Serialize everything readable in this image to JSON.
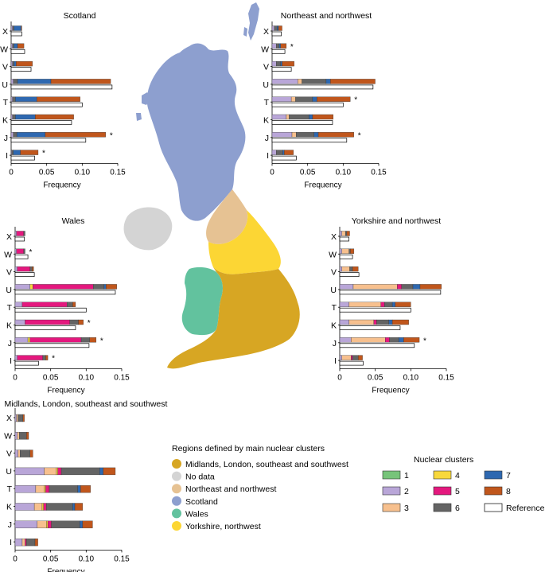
{
  "chart_data": {
    "type": "bar",
    "orientation": "horizontal-stacked",
    "categories": [
      "X",
      "W",
      "V",
      "U",
      "T",
      "K",
      "J",
      "I"
    ],
    "xlabel": "Frequency",
    "xticks": [
      "0",
      "0.05",
      "0.10",
      "0.15"
    ],
    "xlim": [
      0,
      0.15
    ],
    "cluster_colors": {
      "1": "#77c47a",
      "2": "#b9a6d8",
      "3": "#f7c08e",
      "4": "#f8d83c",
      "5": "#e4187e",
      "6": "#646464",
      "7": "#2e68b0",
      "8": "#c0561c"
    },
    "reference_color": "#ffffff",
    "panels": [
      {
        "title": "Scotland",
        "stacks": {
          "X": [
            [
              2,
              0.002
            ],
            [
              6,
              0.002
            ],
            [
              7,
              0.01
            ],
            [
              8,
              0.001
            ]
          ],
          "W": [
            [
              2,
              0.002
            ],
            [
              6,
              0.002
            ],
            [
              7,
              0.005
            ],
            [
              8,
              0.009
            ]
          ],
          "V": [
            [
              2,
              0.002
            ],
            [
              6,
              0.002
            ],
            [
              7,
              0.003
            ],
            [
              8,
              0.023
            ]
          ],
          "U": [
            [
              2,
              0.003
            ],
            [
              6,
              0.006
            ],
            [
              7,
              0.047
            ],
            [
              8,
              0.084
            ]
          ],
          "T": [
            [
              2,
              0.002
            ],
            [
              6,
              0.004
            ],
            [
              7,
              0.03
            ],
            [
              8,
              0.061
            ]
          ],
          "K": [
            [
              2,
              0.002
            ],
            [
              6,
              0.004
            ],
            [
              7,
              0.028
            ],
            [
              8,
              0.054
            ]
          ],
          "J": [
            [
              2,
              0.003
            ],
            [
              6,
              0.005
            ],
            [
              7,
              0.04
            ],
            [
              8,
              0.085
            ]
          ],
          "I": [
            [
              2,
              0.001
            ],
            [
              6,
              0.002
            ],
            [
              7,
              0.01
            ],
            [
              8,
              0.025
            ]
          ]
        },
        "reference": {
          "X": 0.015,
          "W": 0.019,
          "V": 0.028,
          "U": 0.142,
          "T": 0.1,
          "K": 0.085,
          "J": 0.105,
          "I": 0.033
        },
        "asterisks": [
          "J",
          "I"
        ]
      },
      {
        "title": "Northeast and northwest",
        "stacks": {
          "X": [
            [
              2,
              0.003
            ],
            [
              6,
              0.004
            ],
            [
              7,
              0.002
            ],
            [
              8,
              0.005
            ]
          ],
          "W": [
            [
              2,
              0.006
            ],
            [
              6,
              0.004
            ],
            [
              7,
              0.002
            ],
            [
              8,
              0.008
            ]
          ],
          "V": [
            [
              2,
              0.006
            ],
            [
              6,
              0.006
            ],
            [
              7,
              0.002
            ],
            [
              8,
              0.017
            ]
          ],
          "U": [
            [
              2,
              0.036
            ],
            [
              3,
              0.006
            ],
            [
              6,
              0.034
            ],
            [
              7,
              0.006
            ],
            [
              8,
              0.063
            ]
          ],
          "T": [
            [
              2,
              0.027
            ],
            [
              3,
              0.006
            ],
            [
              6,
              0.024
            ],
            [
              7,
              0.006
            ],
            [
              8,
              0.047
            ]
          ],
          "K": [
            [
              2,
              0.02
            ],
            [
              3,
              0.004
            ],
            [
              6,
              0.028
            ],
            [
              7,
              0.005
            ],
            [
              8,
              0.029
            ]
          ],
          "J": [
            [
              2,
              0.028
            ],
            [
              3,
              0.006
            ],
            [
              6,
              0.025
            ],
            [
              7,
              0.006
            ],
            [
              8,
              0.05
            ]
          ],
          "I": [
            [
              2,
              0.006
            ],
            [
              6,
              0.009
            ],
            [
              7,
              0.002
            ],
            [
              8,
              0.013
            ]
          ]
        },
        "reference": {
          "X": 0.013,
          "W": 0.018,
          "V": 0.027,
          "U": 0.142,
          "T": 0.1,
          "K": 0.085,
          "J": 0.105,
          "I": 0.034
        },
        "asterisks": [
          "W",
          "T",
          "J"
        ]
      },
      {
        "title": "Wales",
        "stacks": {
          "X": [
            [
              2,
              0.002
            ],
            [
              5,
              0.01
            ],
            [
              6,
              0.002
            ]
          ],
          "W": [
            [
              2,
              0.002
            ],
            [
              5,
              0.01
            ],
            [
              6,
              0.002
            ]
          ],
          "V": [
            [
              2,
              0.003
            ],
            [
              5,
              0.018
            ],
            [
              6,
              0.003
            ],
            [
              8,
              0.002
            ]
          ],
          "U": [
            [
              2,
              0.021
            ],
            [
              4,
              0.004
            ],
            [
              5,
              0.085
            ],
            [
              6,
              0.015
            ],
            [
              7,
              0.003
            ],
            [
              8,
              0.015
            ]
          ],
          "T": [
            [
              2,
              0.01
            ],
            [
              5,
              0.063
            ],
            [
              6,
              0.008
            ],
            [
              8,
              0.004
            ]
          ],
          "K": [
            [
              2,
              0.014
            ],
            [
              5,
              0.063
            ],
            [
              6,
              0.012
            ],
            [
              8,
              0.007
            ]
          ],
          "J": [
            [
              2,
              0.018
            ],
            [
              4,
              0.003
            ],
            [
              5,
              0.072
            ],
            [
              6,
              0.012
            ],
            [
              8,
              0.009
            ]
          ],
          "I": [
            [
              2,
              0.003
            ],
            [
              5,
              0.036
            ],
            [
              6,
              0.004
            ],
            [
              8,
              0.003
            ]
          ]
        },
        "reference": {
          "X": 0.013,
          "W": 0.018,
          "V": 0.027,
          "U": 0.141,
          "T": 0.1,
          "K": 0.085,
          "J": 0.104,
          "I": 0.033
        },
        "asterisks": [
          "W",
          "K",
          "J",
          "I"
        ]
      },
      {
        "title": "Yorkshire and northwest",
        "stacks": {
          "X": [
            [
              2,
              0.003
            ],
            [
              3,
              0.005
            ],
            [
              6,
              0.002
            ],
            [
              8,
              0.004
            ]
          ],
          "W": [
            [
              2,
              0.003
            ],
            [
              3,
              0.01
            ],
            [
              6,
              0.002
            ],
            [
              8,
              0.005
            ]
          ],
          "V": [
            [
              2,
              0.003
            ],
            [
              3,
              0.011
            ],
            [
              6,
              0.004
            ],
            [
              8,
              0.008
            ]
          ],
          "U": [
            [
              2,
              0.019
            ],
            [
              3,
              0.062
            ],
            [
              5,
              0.006
            ],
            [
              6,
              0.016
            ],
            [
              7,
              0.01
            ],
            [
              8,
              0.03
            ]
          ],
          "T": [
            [
              2,
              0.013
            ],
            [
              3,
              0.045
            ],
            [
              5,
              0.005
            ],
            [
              6,
              0.011
            ],
            [
              7,
              0.004
            ],
            [
              8,
              0.022
            ]
          ],
          "K": [
            [
              2,
              0.013
            ],
            [
              3,
              0.035
            ],
            [
              5,
              0.004
            ],
            [
              6,
              0.017
            ],
            [
              7,
              0.005
            ],
            [
              8,
              0.023
            ]
          ],
          "J": [
            [
              2,
              0.016
            ],
            [
              3,
              0.048
            ],
            [
              5,
              0.006
            ],
            [
              6,
              0.013
            ],
            [
              7,
              0.007
            ],
            [
              8,
              0.022
            ]
          ],
          "I": [
            [
              2,
              0.003
            ],
            [
              3,
              0.013
            ],
            [
              5,
              0.002
            ],
            [
              6,
              0.008
            ],
            [
              8,
              0.006
            ]
          ]
        },
        "reference": {
          "X": 0.013,
          "W": 0.018,
          "V": 0.027,
          "U": 0.142,
          "T": 0.1,
          "K": 0.085,
          "J": 0.105,
          "I": 0.033
        },
        "asterisks": [
          "J"
        ]
      },
      {
        "title": "Midlands, London, southeast and southwest",
        "stacks": {
          "X": [
            [
              2,
              0.002
            ],
            [
              3,
              0.002
            ],
            [
              6,
              0.007
            ],
            [
              8,
              0.002
            ]
          ],
          "W": [
            [
              2,
              0.003
            ],
            [
              3,
              0.003
            ],
            [
              6,
              0.01
            ],
            [
              8,
              0.003
            ]
          ],
          "V": [
            [
              2,
              0.004
            ],
            [
              3,
              0.003
            ],
            [
              6,
              0.014
            ],
            [
              8,
              0.004
            ]
          ],
          "U": [
            [
              2,
              0.041
            ],
            [
              3,
              0.017
            ],
            [
              4,
              0.002
            ],
            [
              5,
              0.005
            ],
            [
              6,
              0.054
            ],
            [
              7,
              0.005
            ],
            [
              8,
              0.017
            ]
          ],
          "T": [
            [
              2,
              0.029
            ],
            [
              3,
              0.012
            ],
            [
              4,
              0.002
            ],
            [
              5,
              0.005
            ],
            [
              6,
              0.04
            ],
            [
              7,
              0.004
            ],
            [
              8,
              0.014
            ]
          ],
          "K": [
            [
              2,
              0.027
            ],
            [
              3,
              0.011
            ],
            [
              4,
              0.002
            ],
            [
              5,
              0.004
            ],
            [
              6,
              0.037
            ],
            [
              7,
              0.003
            ],
            [
              8,
              0.011
            ]
          ],
          "J": [
            [
              2,
              0.031
            ],
            [
              3,
              0.013
            ],
            [
              4,
              0.002
            ],
            [
              5,
              0.005
            ],
            [
              6,
              0.04
            ],
            [
              7,
              0.004
            ],
            [
              8,
              0.014
            ]
          ],
          "I": [
            [
              2,
              0.01
            ],
            [
              3,
              0.004
            ],
            [
              5,
              0.002
            ],
            [
              6,
              0.012
            ],
            [
              8,
              0.004
            ]
          ]
        },
        "reference": null,
        "asterisks": []
      }
    ]
  },
  "map": {
    "legend_title": "Regions defined by main nuclear clusters",
    "legend": [
      {
        "label": "Midlands, London, southeast and southwest",
        "color": "#d7a623"
      },
      {
        "label": "No data",
        "color": "#d4d4d4"
      },
      {
        "label": "Northeast and northwest",
        "color": "#e6c293"
      },
      {
        "label": "Scotland",
        "color": "#8d9fcf"
      },
      {
        "label": "Wales",
        "color": "#62c29e"
      },
      {
        "label": "Yorkshire, northwest",
        "color": "#fcd634"
      }
    ]
  },
  "cluster_legend": {
    "title": "Nuclear clusters",
    "items": [
      "1",
      "2",
      "3",
      "4",
      "5",
      "6",
      "7",
      "8"
    ],
    "reference_label": "Reference"
  }
}
